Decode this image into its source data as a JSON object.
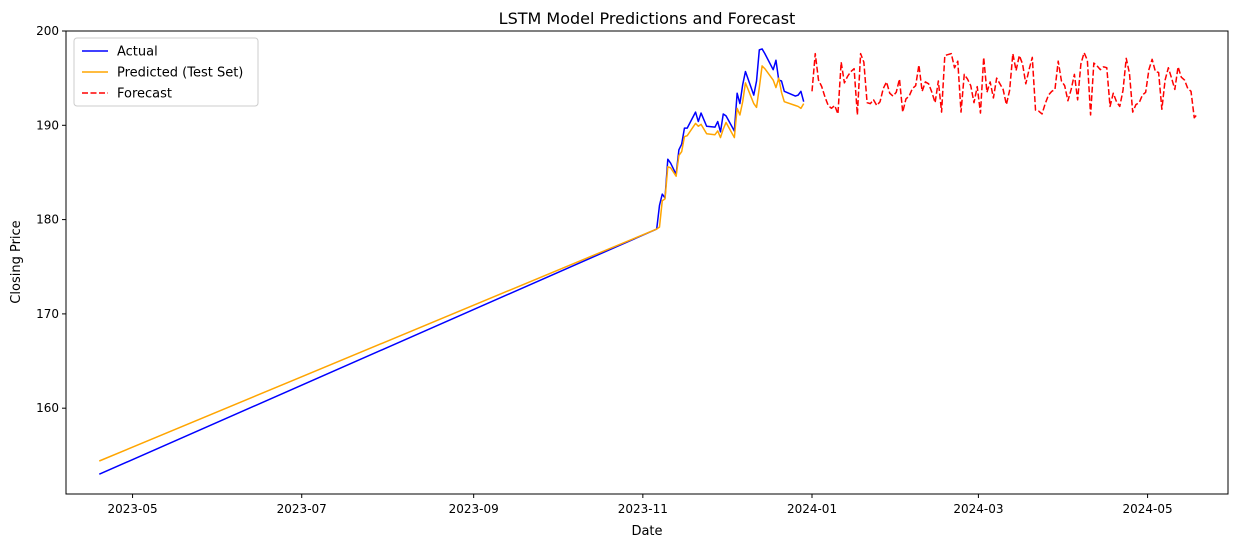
{
  "chart_data": {
    "type": "line",
    "title": "LSTM Model Predictions and Forecast",
    "xlabel": "Date",
    "ylabel": "Closing Price",
    "xlim": [
      "2023-04-07",
      "2024-05-30"
    ],
    "ylim": [
      150.9,
      200.0
    ],
    "xticks": [
      "2023-05",
      "2023-07",
      "2023-09",
      "2023-11",
      "2024-01",
      "2024-03",
      "2024-05"
    ],
    "yticks": [
      160,
      170,
      180,
      190,
      200
    ],
    "grid": false,
    "legend_position": "top-left",
    "series": [
      {
        "name": "Actual",
        "color": "#0000ff",
        "style": "solid",
        "points": [
          [
            "2023-04-19",
            153.0
          ],
          [
            "2023-11-06",
            179.0
          ],
          [
            "2023-11-07",
            181.5
          ],
          [
            "2023-11-08",
            182.7
          ],
          [
            "2023-11-09",
            182.3
          ],
          [
            "2023-11-10",
            186.4
          ],
          [
            "2023-11-11",
            186.0
          ],
          [
            "2023-11-13",
            184.8
          ],
          [
            "2023-11-14",
            187.4
          ],
          [
            "2023-11-15",
            188.0
          ],
          [
            "2023-11-16",
            189.7
          ],
          [
            "2023-11-17",
            189.7
          ],
          [
            "2023-11-20",
            191.4
          ],
          [
            "2023-11-21",
            190.4
          ],
          [
            "2023-11-22",
            191.3
          ],
          [
            "2023-11-24",
            189.9
          ],
          [
            "2023-11-27",
            189.8
          ],
          [
            "2023-11-28",
            190.4
          ],
          [
            "2023-11-29",
            189.3
          ],
          [
            "2023-11-30",
            191.2
          ],
          [
            "2023-12-01",
            191.0
          ],
          [
            "2023-12-04",
            189.4
          ],
          [
            "2023-12-05",
            193.4
          ],
          [
            "2023-12-06",
            192.3
          ],
          [
            "2023-12-07",
            194.3
          ],
          [
            "2023-12-08",
            195.7
          ],
          [
            "2023-12-11",
            193.2
          ],
          [
            "2023-12-12",
            194.7
          ],
          [
            "2023-12-13",
            198.0
          ],
          [
            "2023-12-14",
            198.1
          ],
          [
            "2023-12-15",
            197.6
          ],
          [
            "2023-12-18",
            195.9
          ],
          [
            "2023-12-19",
            196.9
          ],
          [
            "2023-12-20",
            194.8
          ],
          [
            "2023-12-21",
            194.7
          ],
          [
            "2023-12-22",
            193.6
          ],
          [
            "2023-12-26",
            193.1
          ],
          [
            "2023-12-27",
            193.2
          ],
          [
            "2023-12-28",
            193.6
          ],
          [
            "2023-12-29",
            192.5
          ]
        ]
      },
      {
        "name": "Predicted (Test Set)",
        "color": "#ffa500",
        "style": "solid",
        "points": [
          [
            "2023-04-19",
            154.4
          ],
          [
            "2023-11-06",
            179.0
          ],
          [
            "2023-11-07",
            179.2
          ],
          [
            "2023-11-08",
            182.0
          ],
          [
            "2023-11-09",
            182.2
          ],
          [
            "2023-11-10",
            185.6
          ],
          [
            "2023-11-11",
            185.5
          ],
          [
            "2023-11-13",
            184.6
          ],
          [
            "2023-11-14",
            186.8
          ],
          [
            "2023-11-15",
            187.2
          ],
          [
            "2023-11-16",
            188.8
          ],
          [
            "2023-11-17",
            188.9
          ],
          [
            "2023-11-20",
            190.2
          ],
          [
            "2023-11-21",
            189.9
          ],
          [
            "2023-11-22",
            190.1
          ],
          [
            "2023-11-24",
            189.1
          ],
          [
            "2023-11-27",
            189.0
          ],
          [
            "2023-11-28",
            189.4
          ],
          [
            "2023-11-29",
            188.7
          ],
          [
            "2023-11-30",
            189.6
          ],
          [
            "2023-12-01",
            190.3
          ],
          [
            "2023-12-04",
            188.7
          ],
          [
            "2023-12-05",
            191.8
          ],
          [
            "2023-12-06",
            191.1
          ],
          [
            "2023-12-07",
            192.5
          ],
          [
            "2023-12-08",
            194.5
          ],
          [
            "2023-12-11",
            192.3
          ],
          [
            "2023-12-12",
            191.9
          ],
          [
            "2023-12-13",
            194.0
          ],
          [
            "2023-12-14",
            196.3
          ],
          [
            "2023-12-15",
            196.0
          ],
          [
            "2023-12-18",
            194.8
          ],
          [
            "2023-12-19",
            194.0
          ],
          [
            "2023-12-20",
            195.0
          ],
          [
            "2023-12-21",
            193.5
          ],
          [
            "2023-12-22",
            192.5
          ],
          [
            "2023-12-26",
            192.1
          ],
          [
            "2023-12-27",
            192.0
          ],
          [
            "2023-12-28",
            191.8
          ],
          [
            "2023-12-29",
            192.3
          ]
        ]
      },
      {
        "name": "Forecast",
        "color": "#ff0000",
        "style": "dashed",
        "start": "2024-01-01",
        "end": "2024-05-19",
        "values": [
          193.6,
          197.6,
          194.8,
          194.1,
          193.0,
          192.1,
          191.8,
          192.1,
          191.2,
          196.7,
          194.5,
          195.2,
          195.7,
          196.0,
          191.1,
          197.6,
          196.7,
          192.4,
          192.3,
          192.7,
          192.1,
          192.5,
          193.9,
          194.6,
          193.4,
          193.1,
          193.5,
          194.9,
          191.4,
          192.8,
          193.1,
          193.9,
          194.2,
          196.4,
          193.6,
          194.6,
          194.4,
          193.5,
          192.4,
          194.7,
          191.4,
          197.4,
          197.5,
          197.6,
          196.1,
          196.8,
          191.4,
          195.4,
          194.9,
          194.2,
          192.4,
          194.1,
          191.3,
          197.2,
          193.5,
          194.6,
          192.9,
          195.0,
          194.4,
          193.8,
          192.2,
          193.7,
          197.6,
          195.8,
          197.4,
          196.5,
          194.4,
          195.9,
          197.2,
          191.6,
          191.5,
          191.2,
          192.3,
          193.2,
          193.6,
          193.8,
          196.8,
          194.7,
          194.2,
          192.6,
          193.8,
          195.4,
          192.7,
          196.5,
          197.7,
          196.9,
          191.1,
          196.6,
          196.3,
          195.9,
          196.2,
          196.1,
          192.0,
          193.4,
          192.5,
          192.0,
          193.7,
          197.1,
          195.5,
          191.4,
          192.2,
          192.4,
          193.2,
          193.5,
          195.9,
          197.0,
          195.7,
          195.6,
          191.7,
          194.8,
          196.1,
          195.0,
          193.8,
          196.2,
          195.1,
          194.8,
          193.9,
          193.6,
          190.8,
          191.2
        ]
      }
    ]
  }
}
